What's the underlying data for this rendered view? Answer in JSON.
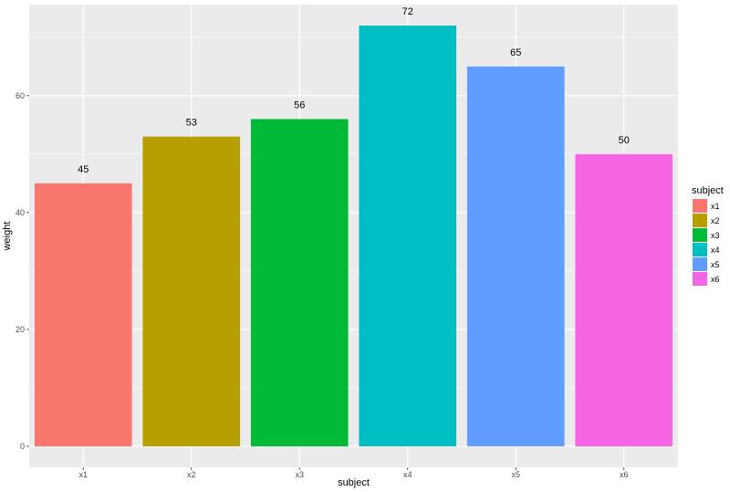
{
  "chart_data": {
    "type": "bar",
    "categories": [
      "x1",
      "x2",
      "x3",
      "x4",
      "x5",
      "x6"
    ],
    "values": [
      45,
      53,
      56,
      72,
      65,
      50
    ],
    "data_labels": [
      "45",
      "53",
      "56",
      "72",
      "65",
      "50"
    ],
    "colors": [
      "#F8766D",
      "#B79F00",
      "#00BA38",
      "#00BFC4",
      "#619CFF",
      "#F564E3"
    ],
    "xlabel": "subject",
    "ylabel": "weight",
    "ylim": [
      -3.6,
      75.6
    ],
    "y_ticks": [
      0,
      20,
      40,
      60
    ],
    "y_tick_labels": [
      "0",
      "20",
      "40",
      "60"
    ],
    "grid": true,
    "legend": {
      "title": "subject",
      "position": "right",
      "labels": [
        "x1",
        "x2",
        "x3",
        "x4",
        "x5",
        "x6"
      ]
    },
    "panel_background": "#EBEBEB",
    "grid_color": "#FFFFFF"
  }
}
